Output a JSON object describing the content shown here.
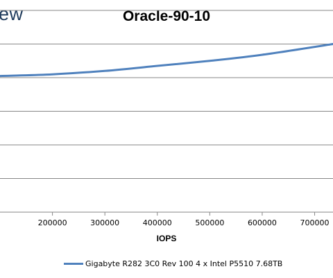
{
  "logo_text": "ew",
  "chart_data": {
    "type": "line",
    "title": "Oracle-90-10",
    "xlabel": "IOPS",
    "ylabel": "",
    "x_ticks": [
      200000,
      300000,
      400000,
      500000,
      600000,
      700000
    ],
    "x_tick_labels": [
      "200000",
      "300000",
      "400000",
      "500000",
      "600000",
      "700000"
    ],
    "xlim": [
      100000,
      735000
    ],
    "ylim": [
      0,
      6
    ],
    "grid": true,
    "legend_position": "bottom",
    "series": [
      {
        "name": "Gigabyte R282 3C0 Rev 100 4 x Intel P5510 7.68TB",
        "color": "#4f81bd",
        "x": [
          100000,
          125000,
          200000,
          300000,
          400000,
          500000,
          600000,
          735000
        ],
        "y": [
          4.05,
          4.06,
          4.1,
          4.2,
          4.35,
          4.5,
          4.68,
          5.0
        ]
      }
    ]
  }
}
